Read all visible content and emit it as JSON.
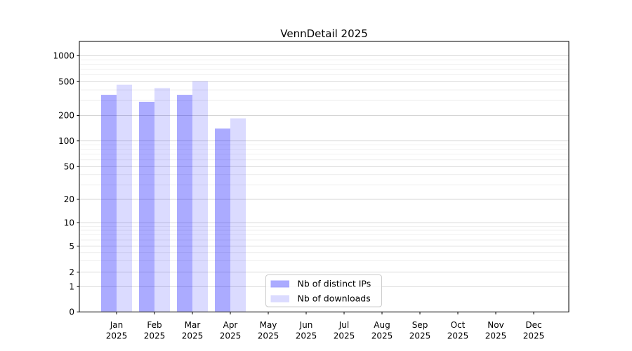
{
  "chart_data": {
    "type": "bar",
    "title": "VennDetail 2025",
    "months": [
      "Jan",
      "Feb",
      "Mar",
      "Apr",
      "May",
      "Jun",
      "Jul",
      "Aug",
      "Sep",
      "Oct",
      "Nov",
      "Dec"
    ],
    "year": "2025",
    "series": [
      {
        "name": "Nb of distinct IPs",
        "color": "rgba(0,0,255,0.33)",
        "values": [
          350,
          290,
          350,
          140,
          null,
          null,
          null,
          null,
          null,
          null,
          null,
          null
        ]
      },
      {
        "name": "Nb of downloads",
        "color": "rgba(0,0,255,0.14)",
        "values": [
          460,
          420,
          505,
          185,
          null,
          null,
          null,
          null,
          null,
          null,
          null,
          null
        ]
      }
    ],
    "y_axis": {
      "scale": "symlog",
      "ticks": [
        0,
        1,
        2,
        5,
        10,
        20,
        50,
        100,
        200,
        500,
        1000
      ],
      "tick_labels": [
        "0",
        "1",
        "2",
        "5",
        "10",
        "20",
        "50",
        "100",
        "200",
        "500",
        "1000"
      ],
      "minor_ticks": [
        3,
        4,
        6,
        7,
        8,
        9,
        30,
        40,
        60,
        70,
        80,
        90,
        300,
        400,
        600,
        700,
        800,
        900
      ],
      "top_value": 1500
    },
    "grid": true,
    "legend": {
      "position": "lower-center"
    }
  },
  "colors": {
    "bar_dark": "rgba(0,0,255,0.33)",
    "bar_light": "rgba(0,0,255,0.14)",
    "grid_major": "#d5d5d5",
    "grid_minor": "#ececec",
    "frame": "#000000",
    "legend_border": "#cccccc",
    "background": "#ffffff"
  }
}
